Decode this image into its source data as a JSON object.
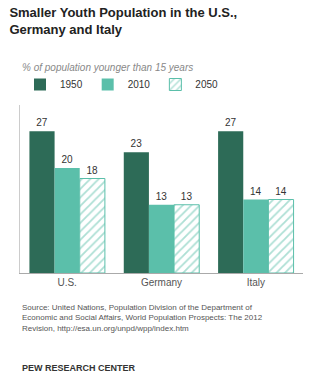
{
  "chart_data": {
    "type": "bar",
    "title": "Smaller Youth Population in the U.S.,\nGermany and Italy",
    "subtitle": "% of population younger than 15 years",
    "categories": [
      "U.S.",
      "Germany",
      "Italy"
    ],
    "series": [
      {
        "name": "1950",
        "color": "#2d6b57",
        "values": [
          27,
          23,
          27
        ]
      },
      {
        "name": "2010",
        "color": "#5bbfaa",
        "values": [
          20,
          13,
          14
        ]
      },
      {
        "name": "2050",
        "color": "#5bbfaa",
        "marker": "hatch",
        "values": [
          18,
          13,
          14
        ]
      }
    ],
    "ylim": [
      0,
      32
    ],
    "grid": false,
    "data_labels": true,
    "tick_labels": "x",
    "legend": "top",
    "annotations": [
      "Source: United Nations, Population Division of the Department of\nEconomic and Social Affairs, World Population Prospects: The 2012\nRevision, http://esa.un.org/unpd/wpp/index.htm",
      "PEW RESEARCH CENTER"
    ]
  }
}
